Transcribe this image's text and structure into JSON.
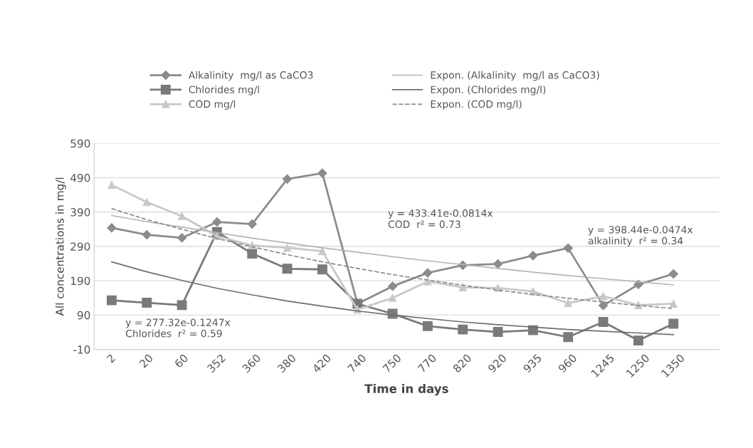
{
  "chart_data": {
    "type": "line",
    "xlabel": "Time in days",
    "ylabel": "All concentrations in mg/l",
    "categories": [
      "2",
      "20",
      "60",
      "352",
      "360",
      "380",
      "420",
      "740",
      "750",
      "770",
      "820",
      "920",
      "935",
      "960",
      "1245",
      "1250",
      "1350"
    ],
    "ylim": [
      -10,
      590
    ],
    "yticks": [
      -10,
      90,
      190,
      290,
      390,
      490,
      590
    ],
    "grid": "y",
    "legend": "top",
    "series": [
      {
        "name": "Alkalinity  mg/l as CaCO3",
        "color": "#8c8c8c",
        "marker": "diamond",
        "values": [
          344,
          324,
          315,
          361,
          355,
          486,
          503,
          123,
          174,
          213,
          235,
          239,
          263,
          285,
          118,
          179,
          210
        ]
      },
      {
        "name": "Chlorides mg/l",
        "color": "#7a7a7a",
        "marker": "square",
        "values": [
          133,
          126,
          119,
          332,
          269,
          225,
          223,
          123,
          94,
          58,
          48,
          41,
          46,
          26,
          70,
          16,
          65
        ]
      },
      {
        "name": "COD mg/l",
        "color": "#c8c8c8",
        "marker": "triangle",
        "values": [
          469,
          419,
          378,
          320,
          293,
          286,
          276,
          106,
          140,
          188,
          171,
          169,
          159,
          125,
          145,
          119,
          123
        ]
      },
      {
        "name": "Expon. (Alkalinity  mg/l as CaCO3)",
        "color": "#b5b5b5",
        "marker": "none",
        "line_style": "solid",
        "values": [
          380,
          362,
          346,
          330,
          314,
          300,
          286,
          273,
          260,
          248,
          237,
          226,
          215,
          205,
          196,
          187,
          178
        ]
      },
      {
        "name": "Expon. (Chlorides mg/l)",
        "color": "#6e6e6e",
        "marker": "none",
        "line_style": "solid",
        "values": [
          245,
          216,
          191,
          168,
          149,
          131,
          116,
          102,
          90,
          80,
          70,
          62,
          55,
          48,
          43,
          38,
          33
        ]
      },
      {
        "name": "Expon. (COD mg/l)",
        "color": "#8a8a8a",
        "marker": "none",
        "line_style": "dashed",
        "values": [
          400,
          368,
          340,
          313,
          289,
          266,
          245,
          226,
          208,
          192,
          177,
          163,
          150,
          139,
          128,
          118,
          109
        ]
      }
    ],
    "annotations": [
      "y = 277.32e-0.1247x\nChlorides  r² = 0.59",
      "y = 433.41e-0.0814x\nCOD  r² = 0.73",
      "y = 398.44e-0.0474x\nalkalinity  r² = 0.34"
    ]
  }
}
